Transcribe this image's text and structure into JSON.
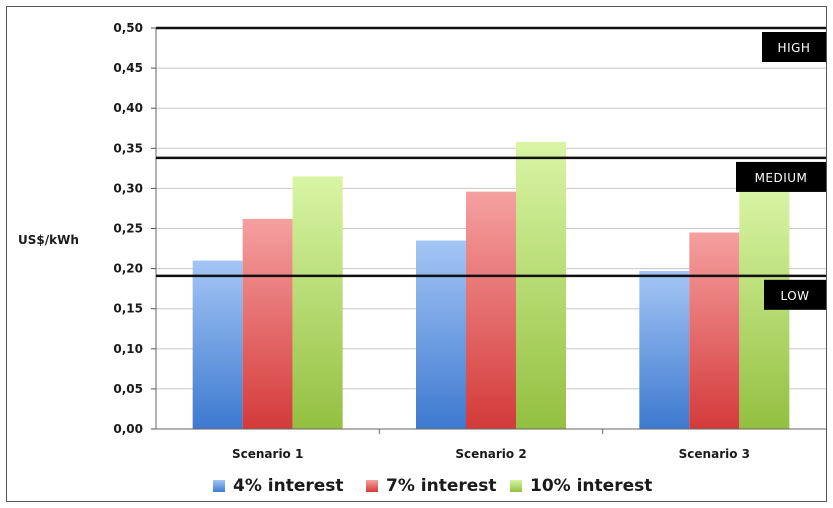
{
  "chart_data": {
    "type": "bar",
    "title": "",
    "xlabel": "",
    "ylabel": "US$/kWh",
    "ylim": [
      0,
      0.5
    ],
    "y_ticks": [
      "0,00",
      "0,05",
      "0,10",
      "0,15",
      "0,20",
      "0,25",
      "0,30",
      "0,35",
      "0,40",
      "0,45",
      "0,50"
    ],
    "y_tick_values": [
      0,
      0.05,
      0.1,
      0.15,
      0.2,
      0.25,
      0.3,
      0.35,
      0.4,
      0.45,
      0.5
    ],
    "categories": [
      "Scenario 1",
      "Scenario 2",
      "Scenario 3"
    ],
    "series": [
      {
        "name": "4% interest",
        "values": [
          0.21,
          0.235,
          0.197
        ],
        "color": "#4f81bd"
      },
      {
        "name": "7% interest",
        "values": [
          0.262,
          0.296,
          0.245
        ],
        "color": "#d84a4a"
      },
      {
        "name": "10% interest",
        "values": [
          0.315,
          0.358,
          0.3
        ],
        "color": "#9bc53d"
      }
    ],
    "reference_lines": [
      {
        "label": "HIGH",
        "value": 0.5
      },
      {
        "label": "MEDIUM",
        "value": 0.338
      },
      {
        "label": "LOW",
        "value": 0.191
      }
    ],
    "grid": true,
    "legend_position": "bottom"
  }
}
